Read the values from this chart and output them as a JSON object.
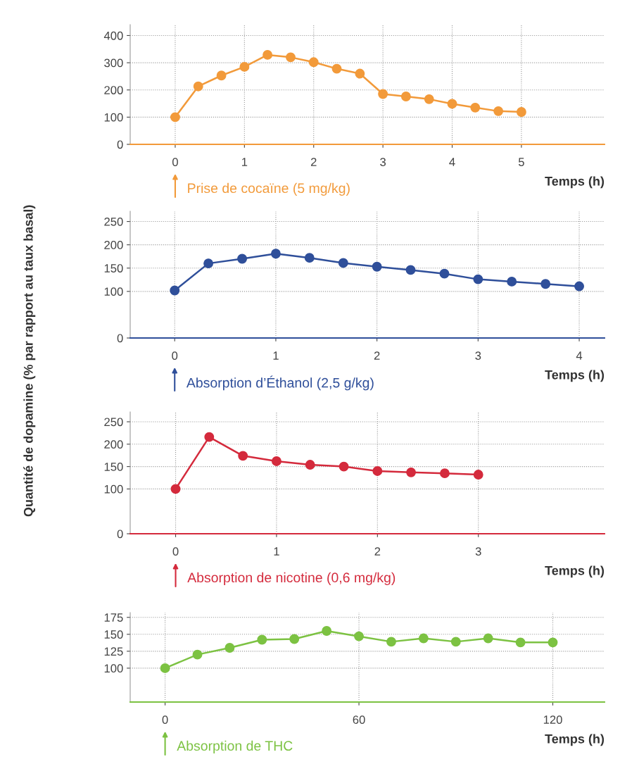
{
  "chart_data": [
    {
      "type": "line",
      "xlabel": "Temps (h)",
      "annotations": [
        "Prise de cocaïne (5 mg/kg)"
      ],
      "marker": "circle",
      "grid": true,
      "x": [
        0,
        0.333,
        0.667,
        1,
        1.333,
        1.667,
        2,
        2.333,
        2.667,
        3,
        3.333,
        3.667,
        4,
        4.333,
        4.667,
        5
      ],
      "series": [
        {
          "color": "#f29a3a",
          "values": [
            100,
            213,
            253,
            285,
            329,
            320,
            302,
            278,
            260,
            185,
            176,
            166,
            149,
            135,
            122,
            119
          ]
        }
      ],
      "xlim": [
        -0.65,
        6.2
      ],
      "xticks": [
        0,
        1,
        2,
        3,
        4,
        5
      ],
      "ylim": [
        0,
        440
      ],
      "yticks": [
        0,
        100,
        200,
        300,
        400
      ]
    },
    {
      "type": "line",
      "ylabel": "Quantité de dopamine (% par rapport au taux basal)",
      "xlabel": "Temps (h)",
      "annotations": [
        "Absorption d’Éthanol (2,5 g/kg)"
      ],
      "marker": "circle",
      "grid": true,
      "x": [
        0,
        0.333,
        0.667,
        1,
        1.333,
        1.667,
        2,
        2.333,
        2.667,
        3,
        3.333,
        3.667,
        4
      ],
      "series": [
        {
          "color": "#2f4f9a",
          "values": [
            102,
            160,
            170,
            181,
            172,
            161,
            153,
            146,
            138,
            126,
            121,
            116,
            111
          ]
        }
      ],
      "xlim": [
        -0.44,
        4.25
      ],
      "xticks": [
        0,
        1,
        2,
        3,
        4
      ],
      "ylim": [
        0,
        272
      ],
      "yticks": [
        0,
        100,
        150,
        200,
        250
      ]
    },
    {
      "type": "line",
      "xlabel": "Temps (h)",
      "annotations": [
        "Absorption de nicotine (0,6 mg/kg)"
      ],
      "marker": "circle",
      "grid": true,
      "x": [
        0,
        0.333,
        0.667,
        1,
        1.333,
        1.667,
        2,
        2.333,
        2.667,
        3
      ],
      "series": [
        {
          "color": "#d42a3c",
          "values": [
            100,
            216,
            174,
            162,
            154,
            150,
            140,
            137,
            135,
            132
          ]
        }
      ],
      "xlim": [
        -0.45,
        4.25
      ],
      "xticks": [
        0,
        1,
        2,
        3
      ],
      "ylim": [
        0,
        272
      ],
      "yticks": [
        0,
        100,
        150,
        200,
        250
      ]
    },
    {
      "type": "line",
      "xlabel": "Temps (h)",
      "annotations": [
        "Absorption de THC"
      ],
      "marker": "circle",
      "grid": true,
      "x": [
        0,
        10,
        20,
        30,
        40,
        50,
        60,
        70,
        80,
        90,
        100,
        110,
        120
      ],
      "series": [
        {
          "color": "#7cc242",
          "values": [
            100,
            120,
            130,
            142,
            143,
            155,
            147,
            139,
            144,
            139,
            144,
            138,
            138
          ]
        }
      ],
      "xlim": [
        -10.8,
        136
      ],
      "xticks": [
        0,
        60,
        120
      ],
      "ylim": [
        50,
        182
      ],
      "yticks": [
        100,
        125,
        150,
        175
      ]
    }
  ]
}
